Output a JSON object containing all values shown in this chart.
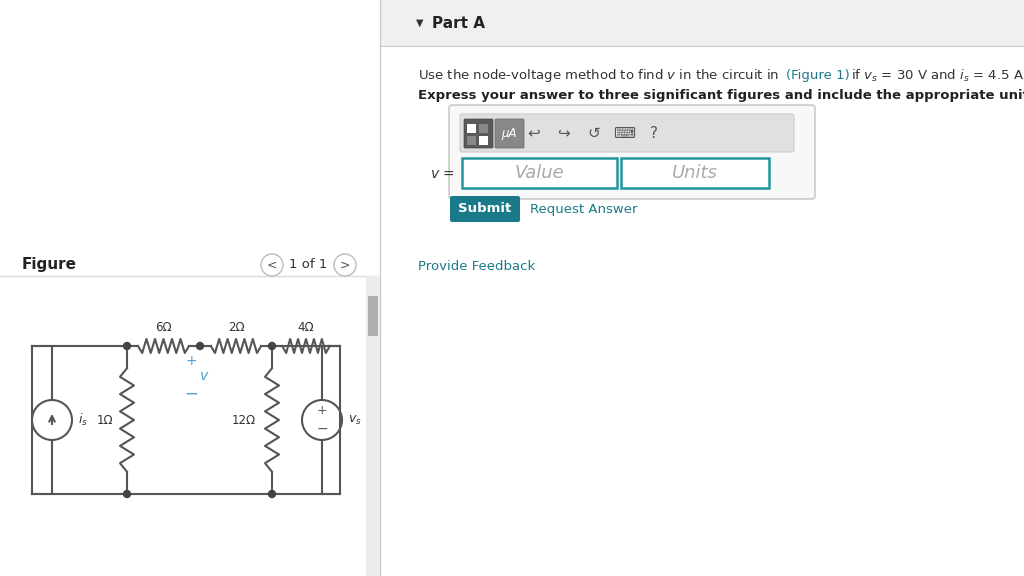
{
  "bg_color": "#ffffff",
  "left_panel_bg": "#ffffff",
  "right_panel_bg": "#ffffff",
  "divider_color": "#cccccc",
  "figure_label": "Figure",
  "nav_text": "1 of 1",
  "part_a_label": "Part A",
  "bold_text": "Express your answer to three significant figures and include the appropriate units.",
  "v_label": "v =",
  "value_placeholder": "Value",
  "units_placeholder": "Units",
  "submit_text": "Submit",
  "request_text": "Request Answer",
  "feedback_text": "Provide Feedback",
  "toolbar_bg": "#e8e8e8",
  "input_border": "#2196a0",
  "submit_bg": "#1a7a8a",
  "submit_text_color": "#ffffff",
  "link_color": "#1a7a8a",
  "text_color": "#333333",
  "circuit_wire_color": "#555555",
  "circuit_label_color": "#333333",
  "circuit_v_color": "#4a9fd4",
  "gray_line_color": "#dddddd"
}
